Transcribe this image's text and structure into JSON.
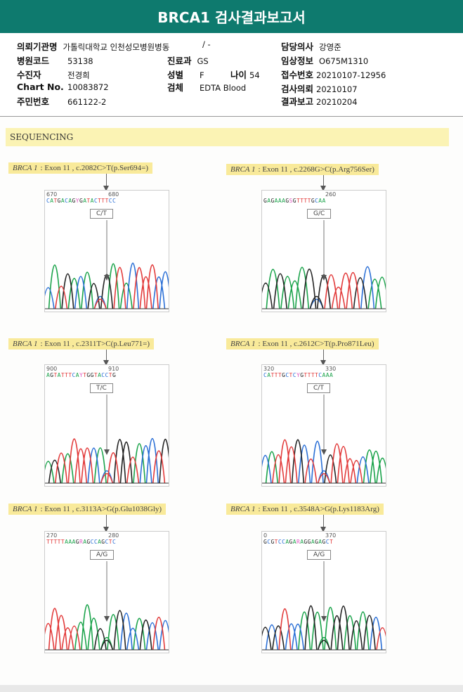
{
  "title": "BRCA1 검사결과보고서",
  "info": {
    "institution_label": "의뢰기관명",
    "institution": "가톨릭대학교 인천성모병원",
    "ward_label": "병동",
    "ward": "/ -",
    "doctor_label": "담당의사",
    "doctor": "강영준",
    "hospital_code_label": "병원코드",
    "hospital_code": "53138",
    "dept_label": "진료과",
    "dept": "GS",
    "clinical_label": "임상정보",
    "clinical": "O675M1310",
    "patient_label": "수진자",
    "patient": "전경희",
    "sex_label": "성별",
    "sex": "F",
    "age_label": "나이",
    "age": "54",
    "receipt_label": "접수번호",
    "receipt": "20210107-12956",
    "chart_label": "Chart No.",
    "chart": "10083872",
    "specimen_label": "검체",
    "specimen": "EDTA Blood",
    "request_label": "검사의뢰",
    "request": "20210107",
    "id_label": "주민번호",
    "id": "661122-2",
    "report_label": "결과보고",
    "report": "20210204"
  },
  "section": "SEQUENCING",
  "colors": {
    "A": "#1aa34a",
    "C": "#2a6fd6",
    "G": "#222222",
    "T": "#e23a3a",
    "header": "#0e7a6e"
  },
  "variants": [
    {
      "gene": "BRCA 1",
      "desc": ": Exon 11 , c.2082C>T(p.Ser694=)",
      "seq": "CATGACAGYGATACTTTCC",
      "pos1": "670",
      "pos2": "680",
      "call": "C/T"
    },
    {
      "gene": "BRCA 1",
      "desc": ": Exon 11 , c.2268G>C(p.Arg756Ser)",
      "seq": "GAGAAAGSGTTTTGCAA",
      "pos1": "",
      "pos2": "260",
      "call": "G/C"
    },
    {
      "gene": "BRCA 1",
      "desc": ": Exon 11 , c.2311T>C(p.Leu771=)",
      "seq": "AGTATTTCAYTGGTACCTG",
      "pos1": "900",
      "pos2": "910",
      "call": "T/C"
    },
    {
      "gene": "BRCA 1",
      "desc": ": Exon 11 , c.2612C>T(p.Pro871Leu)",
      "seq": "CATTTGCTCYGTTTTCAAA",
      "pos1": "320",
      "pos2": "330",
      "call": "C/T"
    },
    {
      "gene": "BRCA 1",
      "desc": ": Exon 11 , c.3113A>G(p.Glu1038Gly)",
      "seq": "TTTTTAAAGRAGCCAGCTC",
      "pos1": "270",
      "pos2": "280",
      "call": "A/G"
    },
    {
      "gene": "BRCA 1",
      "desc": ": Exon 11 , c.3548A>G(p.Lys1183Arg)",
      "seq": "GCGTCCAGARAGGAGAGCT",
      "pos1": "0",
      "pos2": "370",
      "call": "A/G"
    }
  ]
}
